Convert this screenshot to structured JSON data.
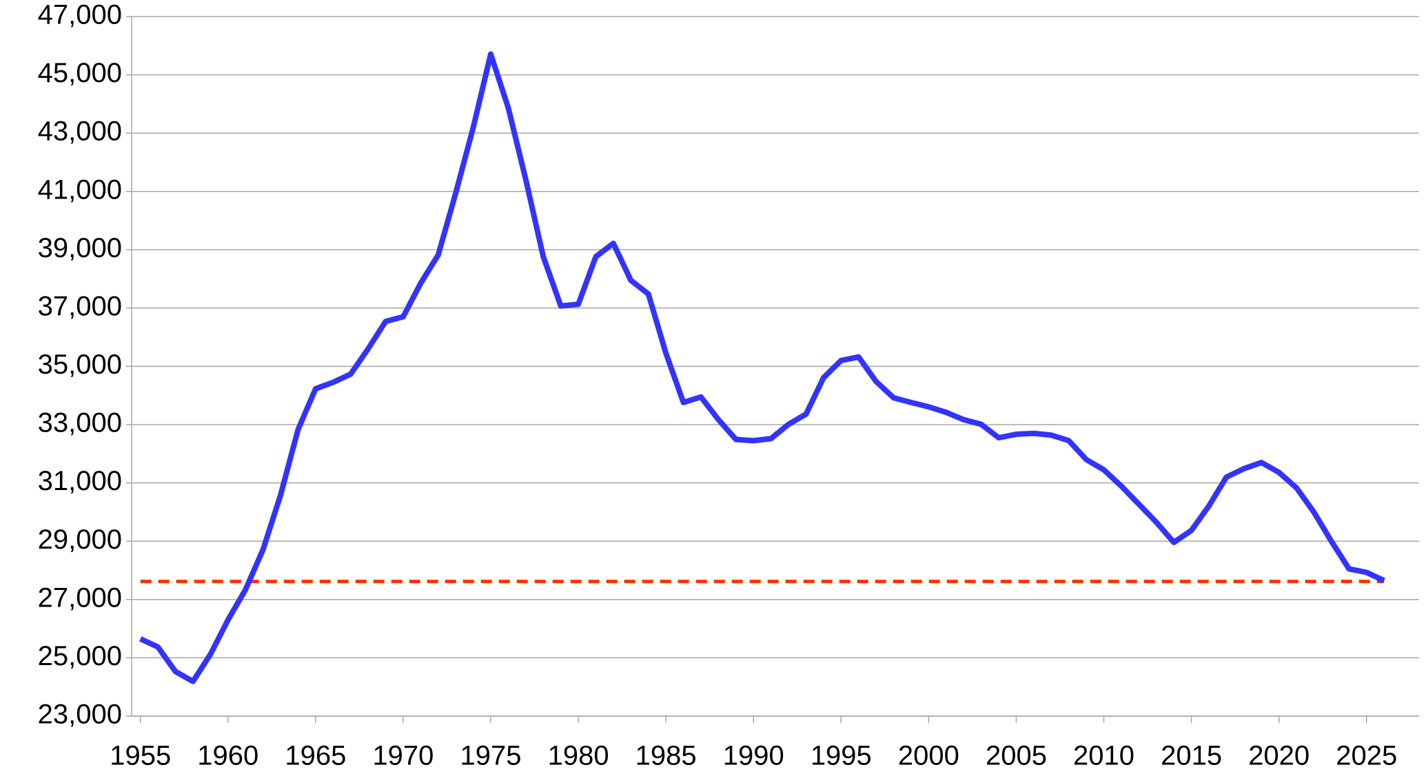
{
  "chart_data": {
    "type": "line",
    "x": [
      1955,
      1956,
      1957,
      1958,
      1959,
      1960,
      1961,
      1962,
      1963,
      1964,
      1965,
      1966,
      1967,
      1968,
      1969,
      1970,
      1971,
      1972,
      1973,
      1974,
      1975,
      1976,
      1977,
      1978,
      1979,
      1980,
      1981,
      1982,
      1983,
      1984,
      1985,
      1986,
      1987,
      1988,
      1989,
      1990,
      1991,
      1992,
      1993,
      1994,
      1995,
      1996,
      1997,
      1998,
      1999,
      2000,
      2001,
      2002,
      2003,
      2004,
      2005,
      2006,
      2007,
      2008,
      2009,
      2010,
      2011,
      2012,
      2013,
      2014,
      2015,
      2016,
      2017,
      2018,
      2019,
      2020,
      2021,
      2022,
      2023,
      2024,
      2025,
      2026
    ],
    "series": [
      {
        "color": "#3333ff",
        "values": [
          25650,
          25370,
          24530,
          24190,
          25120,
          26300,
          27340,
          28710,
          30580,
          32830,
          34230,
          34450,
          34730,
          35600,
          36540,
          36700,
          37850,
          38820,
          40940,
          43190,
          45710,
          43870,
          41410,
          38760,
          37070,
          37130,
          38760,
          39220,
          37950,
          37480,
          35450,
          33760,
          33950,
          33170,
          32490,
          32450,
          32520,
          33010,
          33360,
          34610,
          35200,
          35320,
          34480,
          33920,
          33760,
          33610,
          33420,
          33170,
          33010,
          32550,
          32670,
          32700,
          32640,
          32450,
          31800,
          31450,
          30890,
          30270,
          29650,
          28960,
          29370,
          30210,
          31200,
          31490,
          31700,
          31360,
          30830,
          29990,
          28990,
          28050,
          27930,
          27650
        ]
      }
    ],
    "reference_line": {
      "value": 27620,
      "color": "#ff3300",
      "dashed": true
    },
    "xlim": [
      1954.5,
      2028
    ],
    "xticks": [
      1955,
      1960,
      1965,
      1970,
      1975,
      1980,
      1985,
      1990,
      1995,
      2000,
      2005,
      2010,
      2015,
      2020,
      2025
    ],
    "ylim": [
      23000,
      47000
    ],
    "yticks": [
      {
        "value": 23000,
        "label": "23,000"
      },
      {
        "value": 25000,
        "label": "25,000"
      },
      {
        "value": 27000,
        "label": "27,000"
      },
      {
        "value": 29000,
        "label": "29,000"
      },
      {
        "value": 31000,
        "label": "31,000"
      },
      {
        "value": 33000,
        "label": "33,000"
      },
      {
        "value": 35000,
        "label": "35,000"
      },
      {
        "value": 37000,
        "label": "37,000"
      },
      {
        "value": 39000,
        "label": "39,000"
      },
      {
        "value": 41000,
        "label": "41,000"
      },
      {
        "value": 43000,
        "label": "43,000"
      },
      {
        "value": 45000,
        "label": "45,000"
      },
      {
        "value": 47000,
        "label": "47,000"
      }
    ],
    "grid": true
  }
}
